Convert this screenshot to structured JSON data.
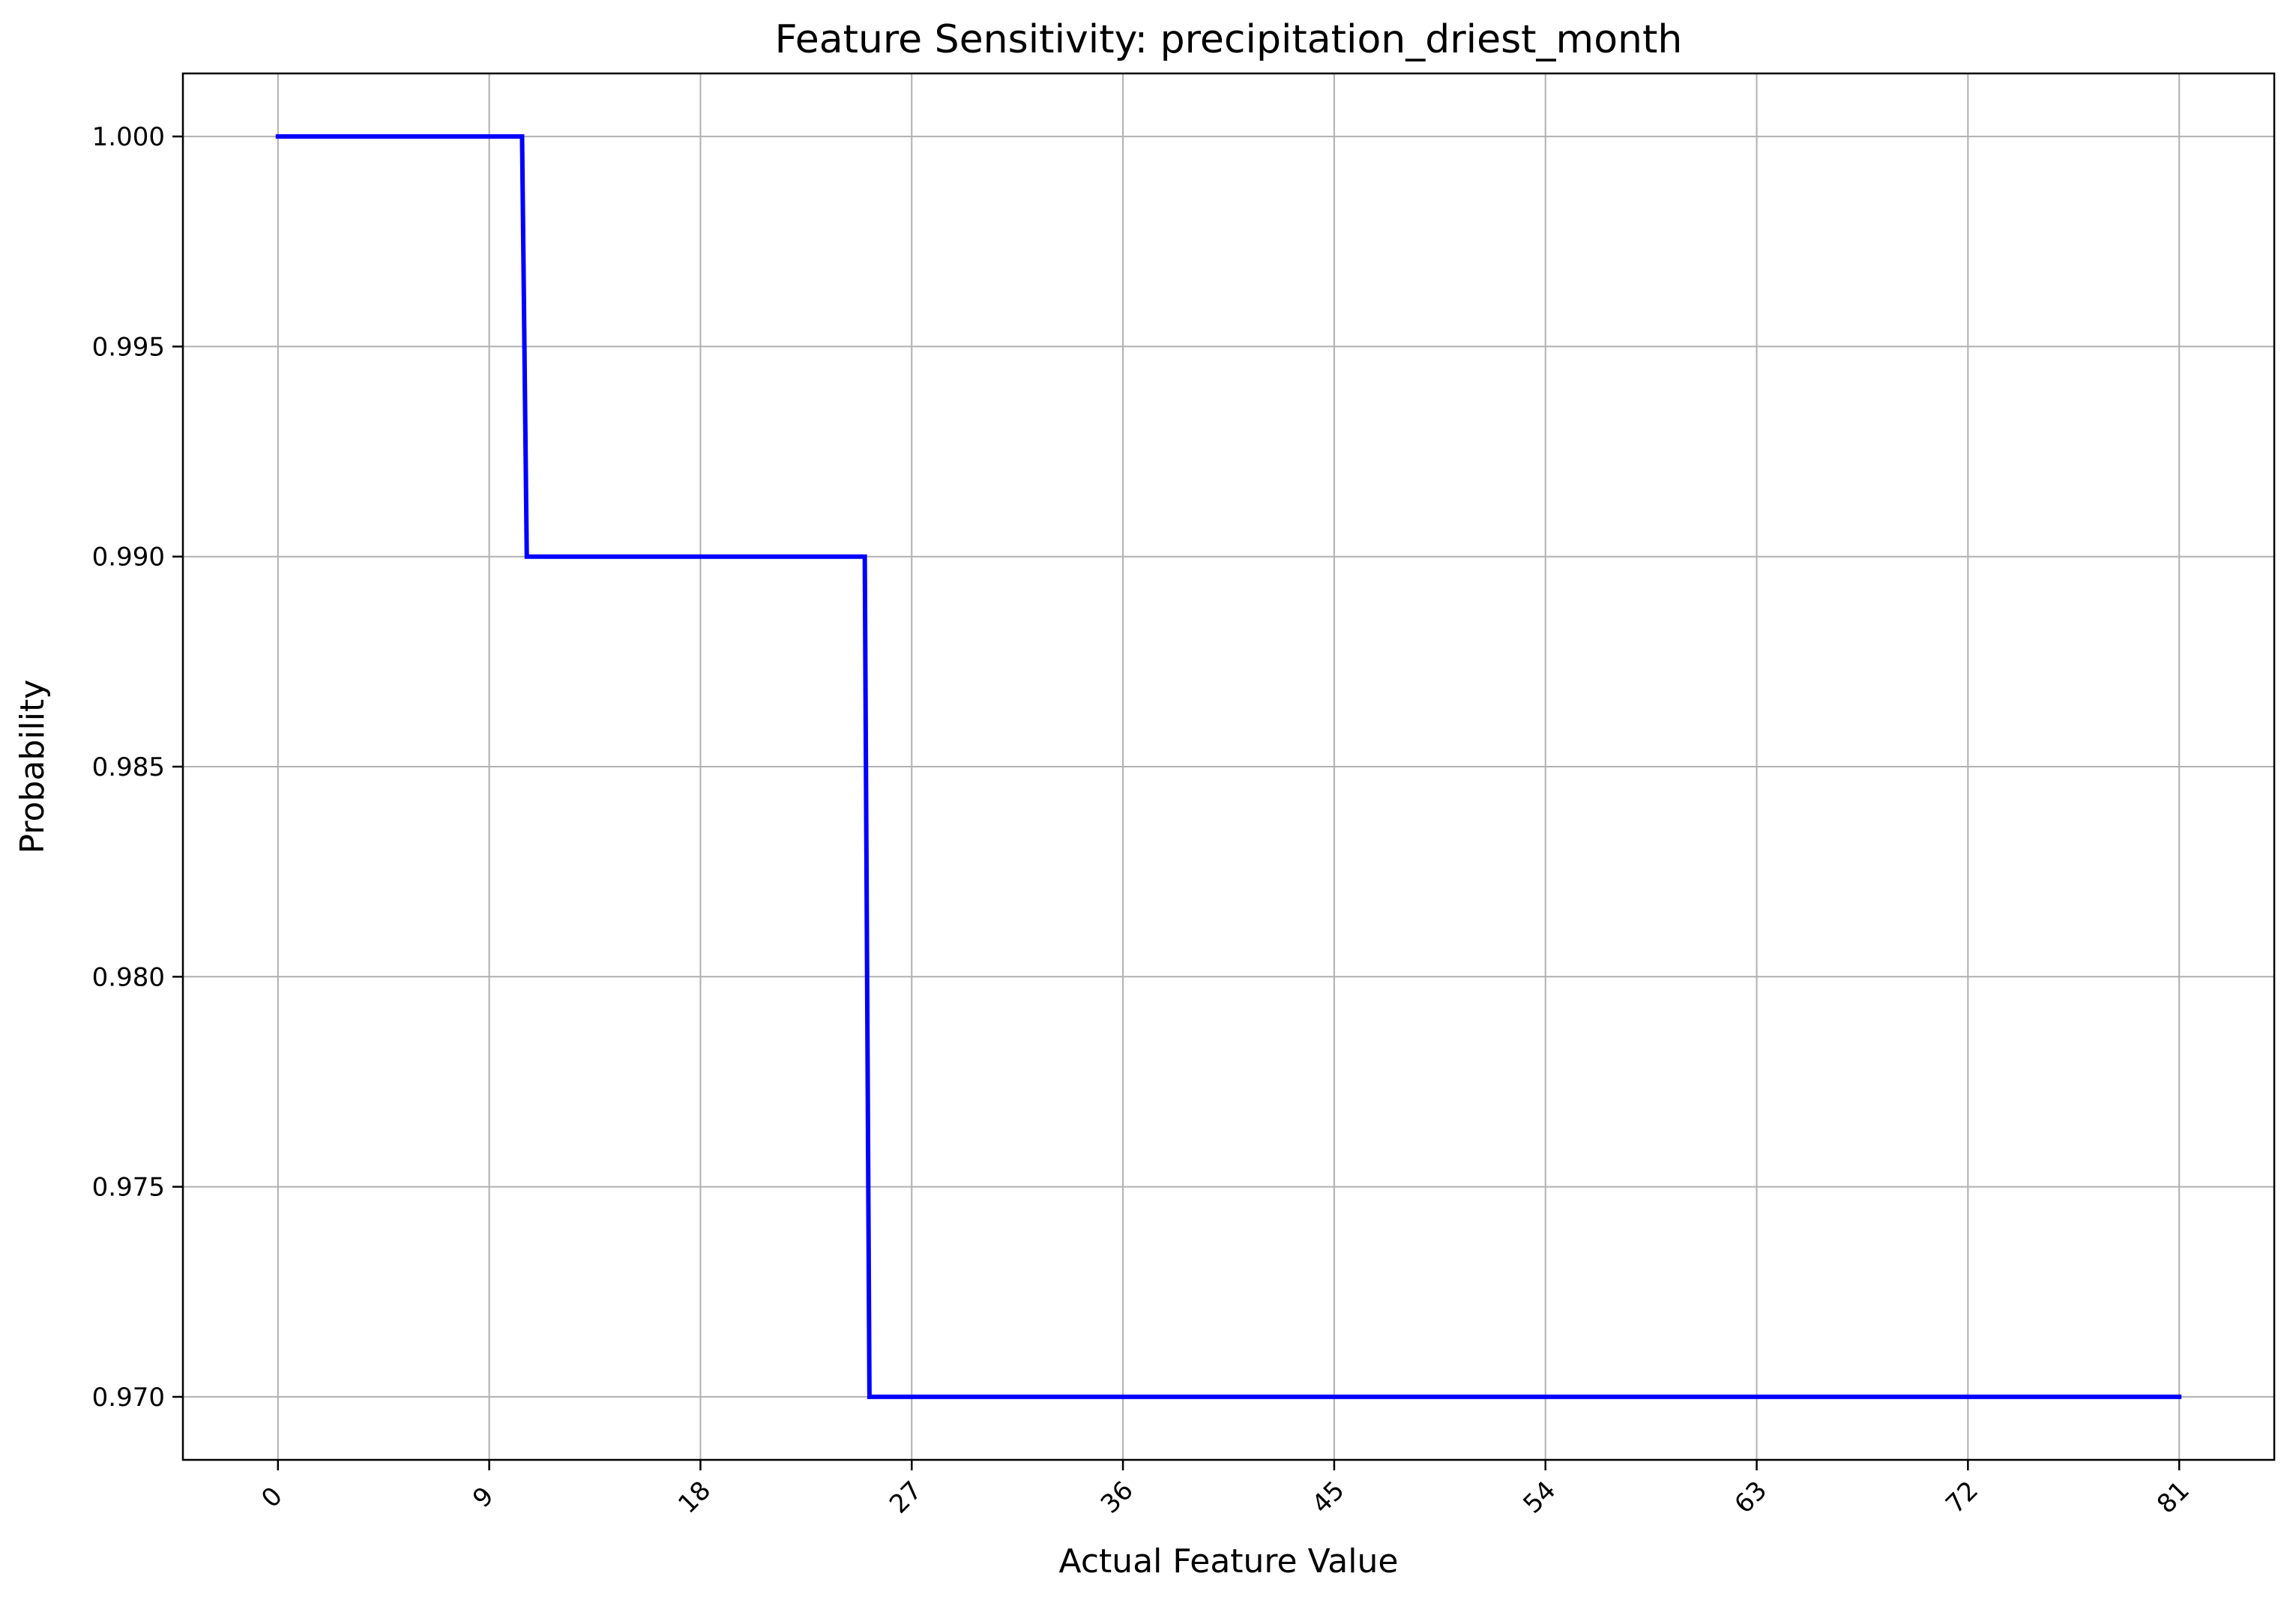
{
  "chart_data": {
    "type": "line",
    "title": "Feature Sensitivity: precipitation_driest_month",
    "xlabel": "Actual Feature Value",
    "ylabel": "Probability",
    "xlim": [
      -4.05,
      85.05
    ],
    "ylim": [
      0.9685,
      1.0015
    ],
    "xticks": [
      0,
      9,
      18,
      27,
      36,
      45,
      54,
      63,
      72,
      81
    ],
    "xtick_labels": [
      "0",
      "9",
      "18",
      "27",
      "36",
      "45",
      "54",
      "63",
      "72",
      "81"
    ],
    "yticks": [
      0.97,
      0.975,
      0.98,
      0.985,
      0.99,
      0.995,
      1.0
    ],
    "ytick_labels": [
      "0.970",
      "0.975",
      "0.980",
      "0.985",
      "0.990",
      "0.995",
      "1.000"
    ],
    "grid": true,
    "series": [
      {
        "color": "#0000ff",
        "x": [
          0,
          10.4,
          10.6,
          25.0,
          25.2,
          81
        ],
        "y": [
          1.0,
          1.0,
          0.99,
          0.99,
          0.97,
          0.97
        ]
      }
    ]
  }
}
